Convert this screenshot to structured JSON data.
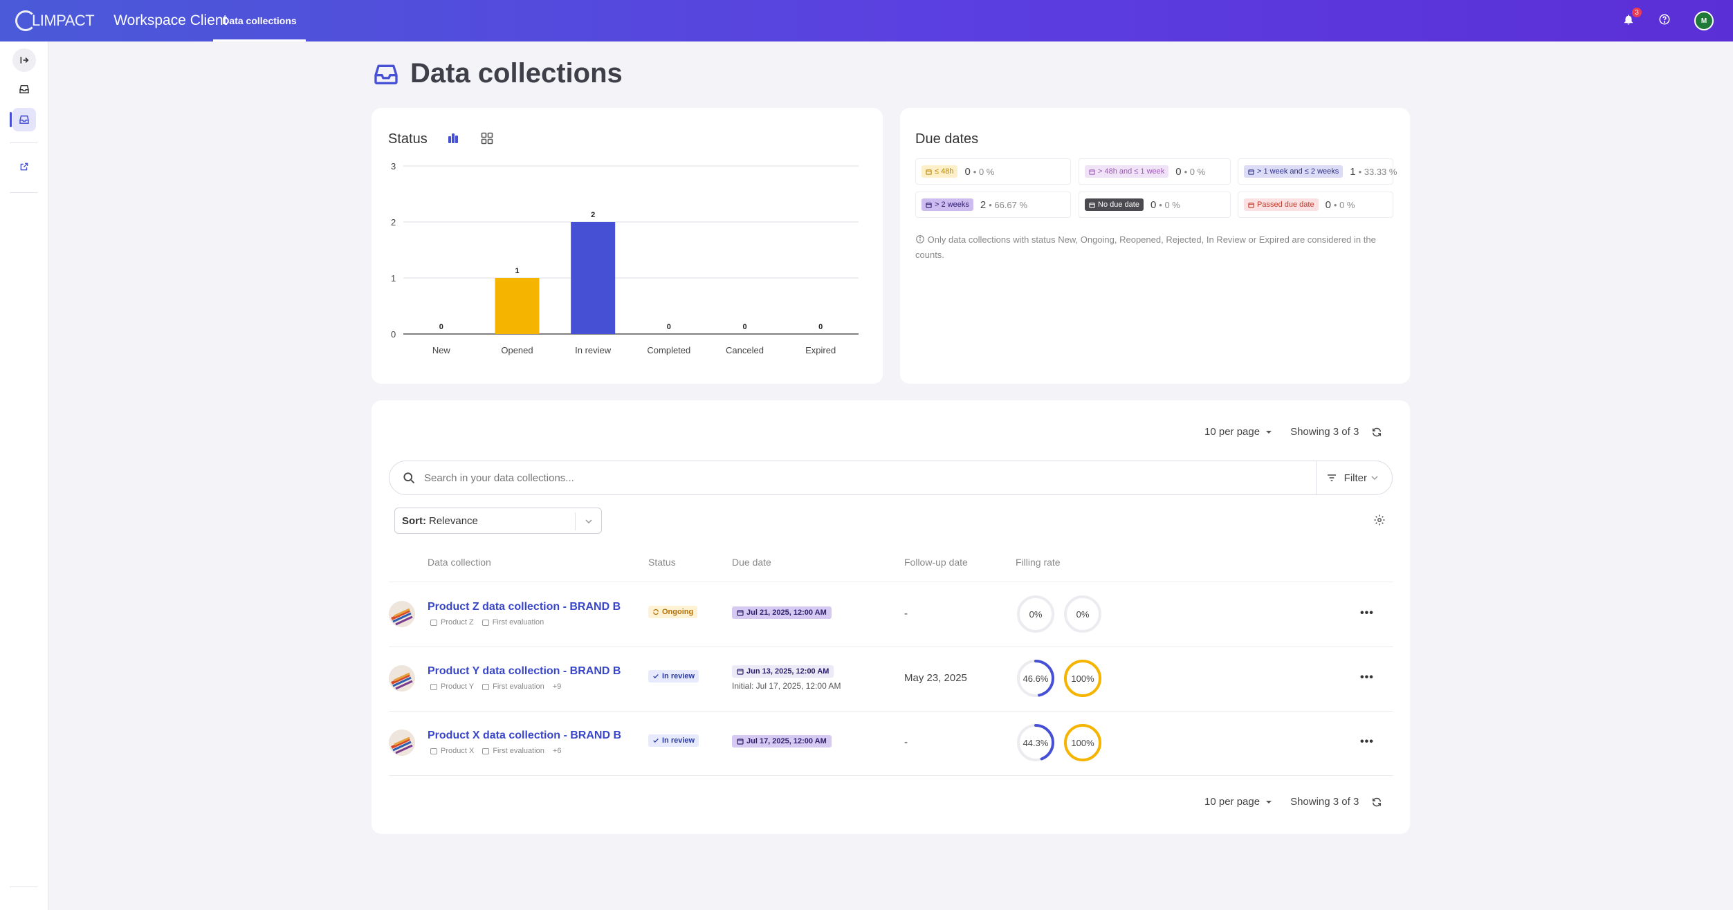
{
  "topbar": {
    "logo_text": "LIMPACT",
    "app_title": "Workspace Client",
    "active_tab": "Data collections",
    "notification_count": "3",
    "avatar_initial": "M"
  },
  "page": {
    "title": "Data collections"
  },
  "status_card": {
    "title": "Status",
    "chart_data": {
      "type": "bar",
      "categories": [
        "New",
        "Opened",
        "In review",
        "Completed",
        "Canceled",
        "Expired"
      ],
      "values": [
        0,
        1,
        2,
        0,
        0,
        0
      ],
      "colors": [
        "#f5b400",
        "#f5b400",
        "#4650d4",
        "#4650d4",
        "#4650d4",
        "#4650d4"
      ],
      "ylim": [
        0,
        3
      ],
      "yticks": [
        0,
        1,
        2,
        3
      ],
      "grid": true
    }
  },
  "due_card": {
    "title": "Due dates",
    "cells": [
      {
        "label": "≤ 48h",
        "count": "0",
        "pct": "• 0 %",
        "bg": "#fdf0c8",
        "fg": "#b7860a"
      },
      {
        "label": "> 48h and ≤ 1 week",
        "count": "0",
        "pct": "• 0 %",
        "bg": "#f1e3f7",
        "fg": "#9a5bb3"
      },
      {
        "label": "> 1 week and ≤ 2 weeks",
        "count": "1",
        "pct": "• 33.33 %",
        "bg": "#dcdcf6",
        "fg": "#2c2f86"
      },
      {
        "label": "> 2 weeks",
        "count": "2",
        "pct": "• 66.67 %",
        "bg": "#cdbcf0",
        "fg": "#2a1a6a"
      },
      {
        "label": "No due date",
        "count": "0",
        "pct": "• 0 %",
        "bg": "#4a4a50",
        "fg": "#ffffff"
      },
      {
        "label": "Passed due date",
        "count": "0",
        "pct": "• 0 %",
        "bg": "#fbe1e1",
        "fg": "#c0392b"
      }
    ],
    "note": "Only data collections with status New, Ongoing, Reopened, Rejected, In Review or Expired are considered in the counts."
  },
  "list": {
    "per_page": "10 per page",
    "showing": "Showing 3 of 3",
    "search_placeholder": "Search in your data collections...",
    "filter_label": "Filter",
    "sort_prefix": "Sort:",
    "sort_value": "Relevance",
    "columns": [
      "Data collection",
      "Status",
      "Due date",
      "Follow-up date",
      "Filling rate"
    ],
    "rows": [
      {
        "title": "Product Z data collection - BRAND B",
        "product": "Product Z",
        "evaluation": "First evaluation",
        "extra": "",
        "status": "Ongoing",
        "due": "Jul 21, 2025, 12:00 AM",
        "due_initial": "",
        "follow_up": "-",
        "fill_a": "0%",
        "fill_a_value": 0,
        "fill_b": "0%",
        "fill_b_value": 0
      },
      {
        "title": "Product Y data collection - BRAND B",
        "product": "Product Y",
        "evaluation": "First evaluation",
        "extra": "+9",
        "status": "In review",
        "due": "Jun 13, 2025, 12:00 AM",
        "due_initial": "Initial: Jul 17, 2025, 12:00 AM",
        "follow_up": "May 23, 2025",
        "fill_a": "46.6%",
        "fill_a_value": 46.6,
        "fill_b": "100%",
        "fill_b_value": 100
      },
      {
        "title": "Product X data collection - BRAND B",
        "product": "Product X",
        "evaluation": "First evaluation",
        "extra": "+6",
        "status": "In review",
        "due": "Jul 17, 2025, 12:00 AM",
        "due_initial": "",
        "follow_up": "-",
        "fill_a": "44.3%",
        "fill_a_value": 44.3,
        "fill_b": "100%",
        "fill_b_value": 100
      }
    ],
    "more_label": "•••"
  }
}
